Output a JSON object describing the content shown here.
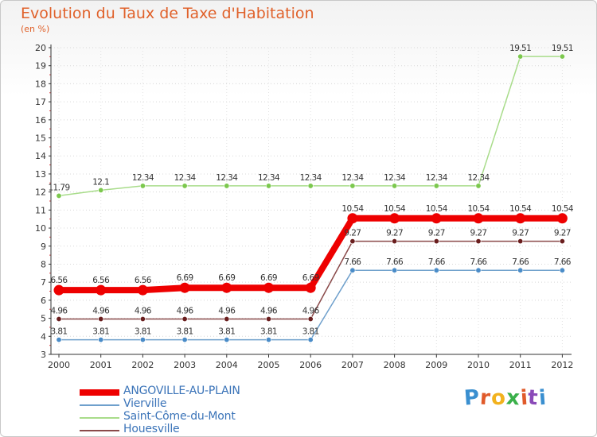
{
  "chart_data": {
    "type": "line",
    "title": "Evolution du Taux de Taxe d'Habitation",
    "subtitle": "(en %)",
    "x": [
      "2000",
      "2001",
      "2002",
      "2003",
      "2004",
      "2005",
      "2006",
      "2007",
      "2008",
      "2009",
      "2010",
      "2011",
      "2012"
    ],
    "ylim": [
      3,
      20
    ],
    "yticks": [
      3,
      4,
      5,
      6,
      7,
      8,
      9,
      10,
      11,
      12,
      13,
      14,
      15,
      16,
      17,
      18,
      19,
      20
    ],
    "grid": true,
    "legend_position": "bottom-left",
    "series": [
      {
        "name": "ANGOVILLE-AU-PLAIN",
        "color": "#ee0000",
        "values": [
          6.56,
          6.56,
          6.56,
          6.69,
          6.69,
          6.69,
          6.69,
          10.54,
          10.54,
          10.54,
          10.54,
          10.54,
          10.54
        ],
        "labels": [
          "6.56",
          "6.56",
          "6.56",
          "6.69",
          "6.69",
          "6.69",
          "6.69",
          "10.54",
          "10.54",
          "10.54",
          "10.54",
          "10.54",
          "10.54"
        ]
      },
      {
        "name": "Vierville",
        "color": "#6fa0cc",
        "marker": "#4a8cc8",
        "values": [
          3.81,
          3.81,
          3.81,
          3.81,
          3.81,
          3.81,
          3.81,
          7.66,
          7.66,
          7.66,
          7.66,
          7.66,
          7.66
        ],
        "labels": [
          "3.81",
          "3.81",
          "3.81",
          "3.81",
          "3.81",
          "3.81",
          "3.81",
          "7.66",
          "7.66",
          "7.66",
          "7.66",
          "7.66",
          "7.66"
        ]
      },
      {
        "name": "Saint-Côme-du-Mont",
        "color": "#a8dc8a",
        "marker": "#7cc84e",
        "values": [
          11.79,
          12.1,
          12.34,
          12.34,
          12.34,
          12.34,
          12.34,
          12.34,
          12.34,
          12.34,
          12.34,
          19.51,
          19.51
        ],
        "labels": [
          "11.79",
          "12.1",
          "12.34",
          "12.34",
          "12.34",
          "12.34",
          "12.34",
          "12.34",
          "12.34",
          "12.34",
          "12.34",
          "19.51",
          "19.51"
        ]
      },
      {
        "name": "Houesville",
        "color": "#8a4a4a",
        "marker": "#6a1e1e",
        "values": [
          4.96,
          4.96,
          4.96,
          4.96,
          4.96,
          4.96,
          4.96,
          9.27,
          9.27,
          9.27,
          9.27,
          9.27,
          9.27
        ],
        "labels": [
          "4.96",
          "4.96",
          "4.96",
          "4.96",
          "4.96",
          "4.96",
          "4.96",
          "9.27",
          "9.27",
          "9.27",
          "9.27",
          "9.27",
          "9.27"
        ]
      }
    ]
  },
  "logo": {
    "letters": [
      "P",
      "r",
      "o",
      "x",
      "i",
      "t",
      "i"
    ],
    "colors": [
      "#3a8fd0",
      "#e05a2a",
      "#f2b21e",
      "#3ab04a",
      "#e05a2a",
      "#8a4ab8",
      "#3a8fd0"
    ]
  }
}
